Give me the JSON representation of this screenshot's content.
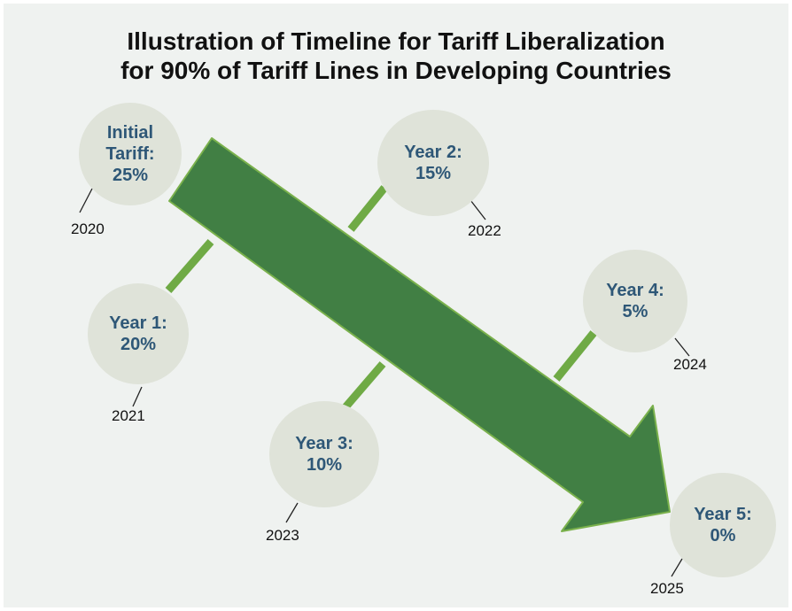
{
  "title": {
    "line1": "Illustration of Timeline for Tariff Liberalization",
    "line2": "for 90% of Tariff Lines in Developing Countries"
  },
  "colors": {
    "background": "#eff2f0",
    "arrow": "#417f44",
    "arrow_outline": "#7ab14c",
    "connector": "#6faa45",
    "bubble": "#dfe3d9",
    "bubble_text": "#2e5777",
    "year_text": "#111111"
  },
  "milestones": [
    {
      "id": "initial",
      "lines": [
        "Initial",
        "Tariff:",
        "25%"
      ],
      "tariff_percent": 25,
      "year": "2020"
    },
    {
      "id": "year1",
      "lines": [
        "Year 1:",
        "20%"
      ],
      "tariff_percent": 20,
      "year": "2021"
    },
    {
      "id": "year2",
      "lines": [
        "Year 2:",
        "15%"
      ],
      "tariff_percent": 15,
      "year": "2022"
    },
    {
      "id": "year3",
      "lines": [
        "Year 3:",
        "10%"
      ],
      "tariff_percent": 10,
      "year": "2023"
    },
    {
      "id": "year4",
      "lines": [
        "Year 4:",
        "5%"
      ],
      "tariff_percent": 5,
      "year": "2024"
    },
    {
      "id": "year5",
      "lines": [
        "Year 5:",
        "0%"
      ],
      "tariff_percent": 0,
      "year": "2025"
    }
  ]
}
